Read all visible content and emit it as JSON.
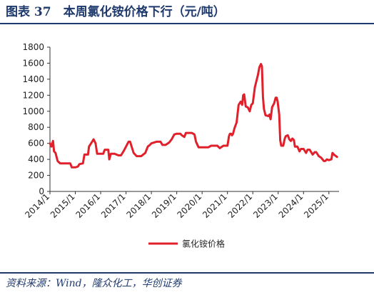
{
  "figure": {
    "title": "图表 37　本周氯化铵价格下行（元/吨）",
    "source": "资料来源：Wind，隆众化工，华创证券"
  },
  "chart_data": {
    "type": "line",
    "ylim": [
      0,
      1800
    ],
    "yticks": [
      0,
      200,
      400,
      600,
      800,
      1000,
      1200,
      1400,
      1600,
      1800
    ],
    "xlim": [
      2014.0,
      2025.4
    ],
    "xticks": [
      {
        "label": "2014/1",
        "x": 2014.0
      },
      {
        "label": "2015/1",
        "x": 2015.0
      },
      {
        "label": "2016/1",
        "x": 2016.0
      },
      {
        "label": "2017/1",
        "x": 2017.0
      },
      {
        "label": "2018/1",
        "x": 2018.0
      },
      {
        "label": "2019/1",
        "x": 2019.0
      },
      {
        "label": "2020/1",
        "x": 2020.0
      },
      {
        "label": "2021/1",
        "x": 2021.0
      },
      {
        "label": "2022/1",
        "x": 2022.0
      },
      {
        "label": "2023/1",
        "x": 2023.0
      },
      {
        "label": "2024/1",
        "x": 2024.0
      },
      {
        "label": "2025/1",
        "x": 2025.0
      }
    ],
    "grid": false,
    "legend_position": "bottom-center",
    "series": [
      {
        "name": "氯化铵价格",
        "color": "#e0202a",
        "points": [
          [
            2014.0,
            600
          ],
          [
            2014.06,
            560
          ],
          [
            2014.12,
            630
          ],
          [
            2014.16,
            500
          ],
          [
            2014.22,
            480
          ],
          [
            2014.3,
            380
          ],
          [
            2014.4,
            350
          ],
          [
            2014.6,
            350
          ],
          [
            2014.8,
            350
          ],
          [
            2014.86,
            300
          ],
          [
            2015.0,
            300
          ],
          [
            2015.1,
            310
          ],
          [
            2015.16,
            340
          ],
          [
            2015.3,
            350
          ],
          [
            2015.36,
            460
          ],
          [
            2015.5,
            460
          ],
          [
            2015.54,
            560
          ],
          [
            2015.62,
            600
          ],
          [
            2015.72,
            650
          ],
          [
            2015.8,
            600
          ],
          [
            2015.86,
            470
          ],
          [
            2016.0,
            470
          ],
          [
            2016.1,
            470
          ],
          [
            2016.16,
            520
          ],
          [
            2016.3,
            520
          ],
          [
            2016.34,
            400
          ],
          [
            2016.4,
            470
          ],
          [
            2016.55,
            470
          ],
          [
            2016.7,
            450
          ],
          [
            2016.8,
            450
          ],
          [
            2016.9,
            500
          ],
          [
            2017.0,
            560
          ],
          [
            2017.1,
            620
          ],
          [
            2017.16,
            620
          ],
          [
            2017.22,
            560
          ],
          [
            2017.3,
            480
          ],
          [
            2017.42,
            440
          ],
          [
            2017.6,
            440
          ],
          [
            2017.76,
            480
          ],
          [
            2017.86,
            560
          ],
          [
            2017.94,
            580
          ],
          [
            2018.0,
            600
          ],
          [
            2018.2,
            620
          ],
          [
            2018.36,
            620
          ],
          [
            2018.44,
            580
          ],
          [
            2018.56,
            580
          ],
          [
            2018.7,
            610
          ],
          [
            2018.8,
            650
          ],
          [
            2018.9,
            710
          ],
          [
            2019.0,
            720
          ],
          [
            2019.14,
            720
          ],
          [
            2019.2,
            700
          ],
          [
            2019.3,
            680
          ],
          [
            2019.36,
            730
          ],
          [
            2019.6,
            730
          ],
          [
            2019.7,
            710
          ],
          [
            2019.76,
            620
          ],
          [
            2019.86,
            550
          ],
          [
            2020.0,
            550
          ],
          [
            2020.24,
            550
          ],
          [
            2020.36,
            570
          ],
          [
            2020.6,
            570
          ],
          [
            2020.7,
            540
          ],
          [
            2020.84,
            570
          ],
          [
            2021.0,
            570
          ],
          [
            2021.04,
            650
          ],
          [
            2021.06,
            690
          ],
          [
            2021.1,
            720
          ],
          [
            2021.14,
            720
          ],
          [
            2021.18,
            700
          ],
          [
            2021.22,
            720
          ],
          [
            2021.28,
            790
          ],
          [
            2021.36,
            860
          ],
          [
            2021.44,
            1080
          ],
          [
            2021.52,
            1120
          ],
          [
            2021.58,
            1080
          ],
          [
            2021.62,
            1200
          ],
          [
            2021.66,
            1210
          ],
          [
            2021.72,
            1060
          ],
          [
            2021.8,
            1050
          ],
          [
            2021.88,
            1000
          ],
          [
            2021.94,
            1080
          ],
          [
            2022.0,
            1100
          ],
          [
            2022.08,
            1300
          ],
          [
            2022.2,
            1450
          ],
          [
            2022.26,
            1550
          ],
          [
            2022.32,
            1590
          ],
          [
            2022.36,
            1560
          ],
          [
            2022.4,
            1180
          ],
          [
            2022.44,
            1030
          ],
          [
            2022.5,
            950
          ],
          [
            2022.62,
            940
          ],
          [
            2022.66,
            960
          ],
          [
            2022.7,
            900
          ],
          [
            2022.76,
            1050
          ],
          [
            2022.84,
            1100
          ],
          [
            2022.9,
            1170
          ],
          [
            2022.94,
            1170
          ],
          [
            2022.98,
            1120
          ],
          [
            2023.04,
            960
          ],
          [
            2023.08,
            640
          ],
          [
            2023.12,
            570
          ],
          [
            2023.2,
            570
          ],
          [
            2023.26,
            660
          ],
          [
            2023.3,
            690
          ],
          [
            2023.38,
            700
          ],
          [
            2023.44,
            650
          ],
          [
            2023.5,
            630
          ],
          [
            2023.56,
            660
          ],
          [
            2023.62,
            640
          ],
          [
            2023.66,
            560
          ],
          [
            2023.76,
            560
          ],
          [
            2023.84,
            500
          ],
          [
            2023.9,
            530
          ],
          [
            2024.0,
            530
          ],
          [
            2024.1,
            480
          ],
          [
            2024.16,
            520
          ],
          [
            2024.24,
            520
          ],
          [
            2024.3,
            490
          ],
          [
            2024.36,
            460
          ],
          [
            2024.44,
            490
          ],
          [
            2024.5,
            490
          ],
          [
            2024.6,
            440
          ],
          [
            2024.7,
            420
          ],
          [
            2024.8,
            380
          ],
          [
            2024.86,
            380
          ],
          [
            2024.92,
            400
          ],
          [
            2025.0,
            390
          ],
          [
            2025.1,
            400
          ],
          [
            2025.14,
            480
          ],
          [
            2025.2,
            460
          ],
          [
            2025.24,
            450
          ],
          [
            2025.28,
            440
          ],
          [
            2025.32,
            430
          ]
        ]
      }
    ]
  }
}
